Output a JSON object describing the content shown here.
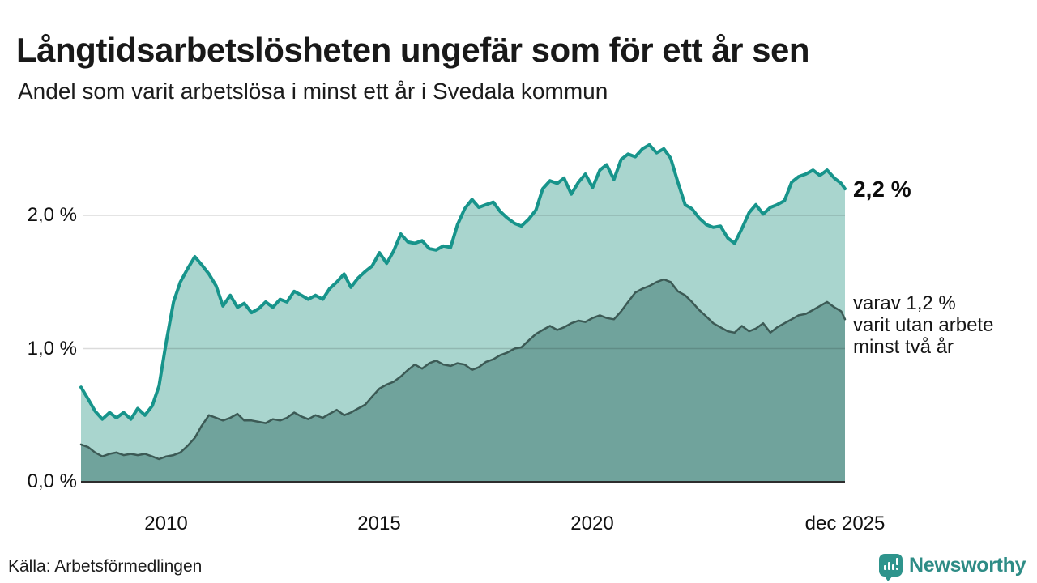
{
  "header": {
    "title": "Långtidsarbetslösheten ungefär som för ett år sen",
    "subtitle": "Andel som varit arbetslösa i minst ett år i Svedala kommun"
  },
  "annotations": {
    "end_value_total": "2,2 %",
    "end_note_lines": [
      "varav 1,2 %",
      "varit utan arbete",
      "minst två år"
    ]
  },
  "source": {
    "label": "Källa: Arbetsförmedlingen"
  },
  "branding": {
    "name": "Newsworthy",
    "icon": "newsworthy-speech-bubble-bar-chart-icon",
    "color": "#2e8c86"
  },
  "colors": {
    "background": "#ffffff",
    "total_line": "#17948b",
    "total_fill": "#a9d5ce",
    "two_year_line": "#3c5a55",
    "two_year_fill": "#70a39c",
    "gridline": "rgba(0,0,0,0.14)",
    "baseline": "#2d2d2d",
    "text": "#1a1a1a"
  },
  "chart_data": {
    "type": "area",
    "title": "Långtidsarbetslösheten ungefär som för ett år sen",
    "subtitle": "Andel som varit arbetslösa i minst ett år i Svedala kommun",
    "unit": "percent of workforce",
    "grid": true,
    "legend_position": "right-inline",
    "x_axis": {
      "min": 2008.0,
      "max": 2025.92,
      "ticks": [
        {
          "label": "2010",
          "value": 2010
        },
        {
          "label": "2015",
          "value": 2015
        },
        {
          "label": "2020",
          "value": 2020
        },
        {
          "label": "dec 2025",
          "value": 2025.92
        }
      ]
    },
    "y_axis": {
      "min": 0,
      "max": 2.6,
      "ticks": [
        {
          "label": "0,0 %",
          "value": 0
        },
        {
          "label": "1,0 %",
          "value": 1
        },
        {
          "label": "2,0 %",
          "value": 2
        }
      ]
    },
    "series": [
      {
        "name": "arbetslosa-minst-ett-ar",
        "display_name": "Andel arbetslösa minst ett år",
        "end_label": "2,2 %",
        "end_value": 2.2,
        "line_color": "#17948b",
        "fill_color": "#a9d5ce",
        "line_width": 4,
        "points": [
          [
            2008.0,
            0.71
          ],
          [
            2008.17,
            0.62
          ],
          [
            2008.33,
            0.53
          ],
          [
            2008.5,
            0.47
          ],
          [
            2008.67,
            0.52
          ],
          [
            2008.83,
            0.48
          ],
          [
            2009.0,
            0.52
          ],
          [
            2009.17,
            0.47
          ],
          [
            2009.33,
            0.55
          ],
          [
            2009.5,
            0.5
          ],
          [
            2009.67,
            0.57
          ],
          [
            2009.83,
            0.72
          ],
          [
            2010.0,
            1.05
          ],
          [
            2010.17,
            1.35
          ],
          [
            2010.33,
            1.5
          ],
          [
            2010.5,
            1.6
          ],
          [
            2010.67,
            1.69
          ],
          [
            2010.83,
            1.63
          ],
          [
            2011.0,
            1.56
          ],
          [
            2011.17,
            1.47
          ],
          [
            2011.33,
            1.32
          ],
          [
            2011.5,
            1.4
          ],
          [
            2011.67,
            1.31
          ],
          [
            2011.83,
            1.34
          ],
          [
            2012.0,
            1.27
          ],
          [
            2012.17,
            1.3
          ],
          [
            2012.33,
            1.35
          ],
          [
            2012.5,
            1.31
          ],
          [
            2012.67,
            1.37
          ],
          [
            2012.83,
            1.35
          ],
          [
            2013.0,
            1.43
          ],
          [
            2013.17,
            1.4
          ],
          [
            2013.33,
            1.37
          ],
          [
            2013.5,
            1.4
          ],
          [
            2013.67,
            1.37
          ],
          [
            2013.83,
            1.45
          ],
          [
            2014.0,
            1.5
          ],
          [
            2014.17,
            1.56
          ],
          [
            2014.33,
            1.46
          ],
          [
            2014.5,
            1.53
          ],
          [
            2014.67,
            1.58
          ],
          [
            2014.83,
            1.62
          ],
          [
            2015.0,
            1.72
          ],
          [
            2015.17,
            1.64
          ],
          [
            2015.33,
            1.73
          ],
          [
            2015.5,
            1.86
          ],
          [
            2015.67,
            1.8
          ],
          [
            2015.83,
            1.79
          ],
          [
            2016.0,
            1.81
          ],
          [
            2016.17,
            1.75
          ],
          [
            2016.33,
            1.74
          ],
          [
            2016.5,
            1.77
          ],
          [
            2016.67,
            1.76
          ],
          [
            2016.83,
            1.93
          ],
          [
            2017.0,
            2.05
          ],
          [
            2017.17,
            2.12
          ],
          [
            2017.33,
            2.06
          ],
          [
            2017.5,
            2.08
          ],
          [
            2017.67,
            2.1
          ],
          [
            2017.83,
            2.03
          ],
          [
            2018.0,
            1.98
          ],
          [
            2018.17,
            1.94
          ],
          [
            2018.33,
            1.92
          ],
          [
            2018.5,
            1.97
          ],
          [
            2018.67,
            2.04
          ],
          [
            2018.83,
            2.2
          ],
          [
            2019.0,
            2.26
          ],
          [
            2019.17,
            2.24
          ],
          [
            2019.33,
            2.28
          ],
          [
            2019.5,
            2.16
          ],
          [
            2019.67,
            2.25
          ],
          [
            2019.83,
            2.31
          ],
          [
            2020.0,
            2.21
          ],
          [
            2020.17,
            2.34
          ],
          [
            2020.33,
            2.38
          ],
          [
            2020.5,
            2.27
          ],
          [
            2020.67,
            2.42
          ],
          [
            2020.83,
            2.46
          ],
          [
            2021.0,
            2.44
          ],
          [
            2021.17,
            2.5
          ],
          [
            2021.33,
            2.53
          ],
          [
            2021.5,
            2.47
          ],
          [
            2021.67,
            2.5
          ],
          [
            2021.83,
            2.43
          ],
          [
            2022.0,
            2.25
          ],
          [
            2022.17,
            2.08
          ],
          [
            2022.33,
            2.05
          ],
          [
            2022.5,
            1.98
          ],
          [
            2022.67,
            1.93
          ],
          [
            2022.83,
            1.91
          ],
          [
            2023.0,
            1.92
          ],
          [
            2023.17,
            1.83
          ],
          [
            2023.33,
            1.79
          ],
          [
            2023.5,
            1.9
          ],
          [
            2023.67,
            2.02
          ],
          [
            2023.83,
            2.08
          ],
          [
            2024.0,
            2.01
          ],
          [
            2024.17,
            2.06
          ],
          [
            2024.33,
            2.08
          ],
          [
            2024.5,
            2.11
          ],
          [
            2024.67,
            2.25
          ],
          [
            2024.83,
            2.29
          ],
          [
            2025.0,
            2.31
          ],
          [
            2025.17,
            2.34
          ],
          [
            2025.33,
            2.3
          ],
          [
            2025.5,
            2.34
          ],
          [
            2025.67,
            2.28
          ],
          [
            2025.83,
            2.24
          ],
          [
            2025.92,
            2.2
          ]
        ]
      },
      {
        "name": "varav-utan-arbete-minst-tva-ar",
        "display_name": "varav utan arbete minst två år",
        "end_label": "varav 1,2 % varit utan arbete minst två år",
        "end_value": 1.2,
        "line_color": "#3c5a55",
        "fill_color": "#70a39c",
        "line_width": 2.5,
        "points": [
          [
            2008.0,
            0.28
          ],
          [
            2008.17,
            0.26
          ],
          [
            2008.33,
            0.22
          ],
          [
            2008.5,
            0.19
          ],
          [
            2008.67,
            0.21
          ],
          [
            2008.83,
            0.22
          ],
          [
            2009.0,
            0.2
          ],
          [
            2009.17,
            0.21
          ],
          [
            2009.33,
            0.2
          ],
          [
            2009.5,
            0.21
          ],
          [
            2009.67,
            0.19
          ],
          [
            2009.83,
            0.17
          ],
          [
            2010.0,
            0.19
          ],
          [
            2010.17,
            0.2
          ],
          [
            2010.33,
            0.22
          ],
          [
            2010.5,
            0.27
          ],
          [
            2010.67,
            0.33
          ],
          [
            2010.83,
            0.42
          ],
          [
            2011.0,
            0.5
          ],
          [
            2011.17,
            0.48
          ],
          [
            2011.33,
            0.46
          ],
          [
            2011.5,
            0.48
          ],
          [
            2011.67,
            0.51
          ],
          [
            2011.83,
            0.46
          ],
          [
            2012.0,
            0.46
          ],
          [
            2012.17,
            0.45
          ],
          [
            2012.33,
            0.44
          ],
          [
            2012.5,
            0.47
          ],
          [
            2012.67,
            0.46
          ],
          [
            2012.83,
            0.48
          ],
          [
            2013.0,
            0.52
          ],
          [
            2013.17,
            0.49
          ],
          [
            2013.33,
            0.47
          ],
          [
            2013.5,
            0.5
          ],
          [
            2013.67,
            0.48
          ],
          [
            2013.83,
            0.51
          ],
          [
            2014.0,
            0.54
          ],
          [
            2014.17,
            0.5
          ],
          [
            2014.33,
            0.52
          ],
          [
            2014.5,
            0.55
          ],
          [
            2014.67,
            0.58
          ],
          [
            2014.83,
            0.64
          ],
          [
            2015.0,
            0.7
          ],
          [
            2015.17,
            0.73
          ],
          [
            2015.33,
            0.75
          ],
          [
            2015.5,
            0.79
          ],
          [
            2015.67,
            0.84
          ],
          [
            2015.83,
            0.88
          ],
          [
            2016.0,
            0.85
          ],
          [
            2016.17,
            0.89
          ],
          [
            2016.33,
            0.91
          ],
          [
            2016.5,
            0.88
          ],
          [
            2016.67,
            0.87
          ],
          [
            2016.83,
            0.89
          ],
          [
            2017.0,
            0.88
          ],
          [
            2017.17,
            0.84
          ],
          [
            2017.33,
            0.86
          ],
          [
            2017.5,
            0.9
          ],
          [
            2017.67,
            0.92
          ],
          [
            2017.83,
            0.95
          ],
          [
            2018.0,
            0.97
          ],
          [
            2018.17,
            1.0
          ],
          [
            2018.33,
            1.01
          ],
          [
            2018.5,
            1.06
          ],
          [
            2018.67,
            1.11
          ],
          [
            2018.83,
            1.14
          ],
          [
            2019.0,
            1.17
          ],
          [
            2019.17,
            1.14
          ],
          [
            2019.33,
            1.16
          ],
          [
            2019.5,
            1.19
          ],
          [
            2019.67,
            1.21
          ],
          [
            2019.83,
            1.2
          ],
          [
            2020.0,
            1.23
          ],
          [
            2020.17,
            1.25
          ],
          [
            2020.33,
            1.23
          ],
          [
            2020.5,
            1.22
          ],
          [
            2020.67,
            1.28
          ],
          [
            2020.83,
            1.35
          ],
          [
            2021.0,
            1.42
          ],
          [
            2021.17,
            1.45
          ],
          [
            2021.33,
            1.47
          ],
          [
            2021.5,
            1.5
          ],
          [
            2021.67,
            1.52
          ],
          [
            2021.83,
            1.5
          ],
          [
            2022.0,
            1.43
          ],
          [
            2022.17,
            1.4
          ],
          [
            2022.33,
            1.35
          ],
          [
            2022.5,
            1.29
          ],
          [
            2022.67,
            1.24
          ],
          [
            2022.83,
            1.19
          ],
          [
            2023.0,
            1.16
          ],
          [
            2023.17,
            1.13
          ],
          [
            2023.33,
            1.12
          ],
          [
            2023.5,
            1.17
          ],
          [
            2023.67,
            1.13
          ],
          [
            2023.83,
            1.15
          ],
          [
            2024.0,
            1.19
          ],
          [
            2024.17,
            1.12
          ],
          [
            2024.33,
            1.16
          ],
          [
            2024.5,
            1.19
          ],
          [
            2024.67,
            1.22
          ],
          [
            2024.83,
            1.25
          ],
          [
            2025.0,
            1.26
          ],
          [
            2025.17,
            1.29
          ],
          [
            2025.33,
            1.32
          ],
          [
            2025.5,
            1.35
          ],
          [
            2025.67,
            1.31
          ],
          [
            2025.83,
            1.28
          ],
          [
            2025.92,
            1.22
          ]
        ]
      }
    ]
  }
}
